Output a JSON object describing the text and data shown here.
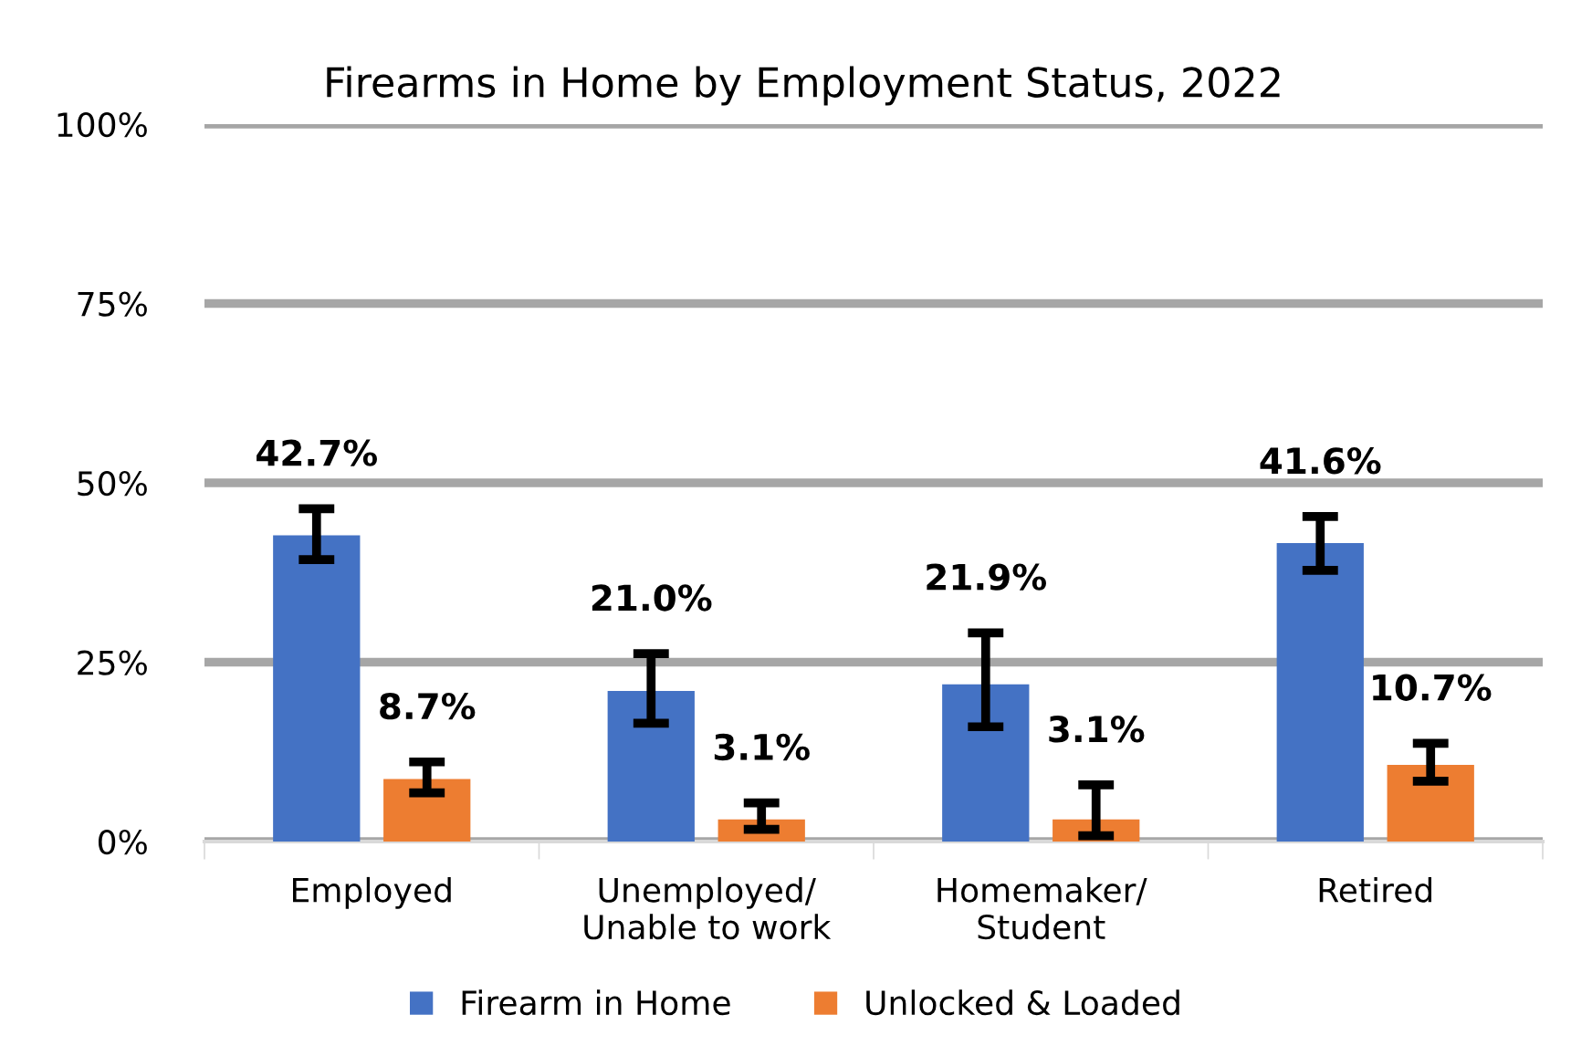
{
  "chart_data": {
    "type": "bar",
    "title": "Firearms in Home by Employment Status, 2022",
    "categories": [
      "Employed",
      "Unemployed/\nUnable to work",
      "Homemaker/\nStudent",
      "Retired"
    ],
    "series": [
      {
        "name": "Firearm in Home",
        "color": "#4472c4",
        "values": [
          42.7,
          21.0,
          21.9,
          41.6
        ],
        "value_labels": [
          "42.7%",
          "21.0%",
          "21.9%",
          "41.6%"
        ],
        "errors": [
          [
            39.3,
            46.4
          ],
          [
            16.5,
            26.2
          ],
          [
            16.0,
            29.1
          ],
          [
            37.8,
            45.3
          ]
        ]
      },
      {
        "name": "Unlocked & Loaded",
        "color": "#ed7d31",
        "values": [
          8.7,
          3.1,
          3.1,
          10.7
        ],
        "value_labels": [
          "8.7%",
          "3.1%",
          "3.1%",
          "10.7%"
        ],
        "errors": [
          [
            6.8,
            11.1
          ],
          [
            1.7,
            5.4
          ],
          [
            0.8,
            7.9
          ],
          [
            8.4,
            13.7
          ]
        ]
      }
    ],
    "ylim": [
      0,
      100
    ],
    "yticks": [
      {
        "value": 0,
        "label": "0%"
      },
      {
        "value": 25,
        "label": "25%"
      },
      {
        "value": 50,
        "label": "50%"
      },
      {
        "value": 75,
        "label": "75%"
      },
      {
        "value": 100,
        "label": "100%"
      }
    ],
    "grid": "y",
    "legend": "bottom"
  }
}
